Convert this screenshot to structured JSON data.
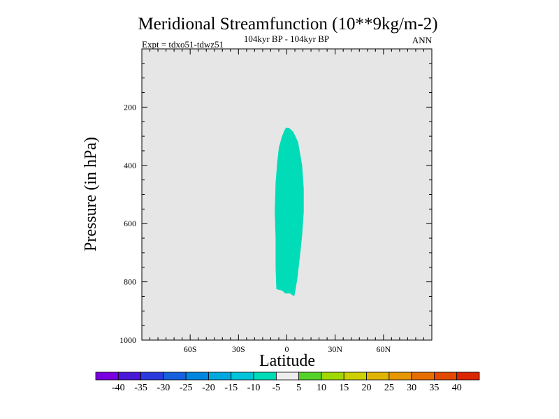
{
  "chart_data": {
    "type": "heatmap",
    "title": "Meridional Streamfunction (10**9kg/m-2)",
    "subtitle_left": "Expt = tdxo51-tdwz51",
    "subtitle_center": "104kyr BP - 104kyr BP",
    "subtitle_right": "ANN",
    "xlabel": "Latitude",
    "ylabel": "Pressure (in hPa)",
    "xlim": [
      -90,
      90
    ],
    "ylim": [
      1000,
      0
    ],
    "x_ticks": [
      {
        "value": -60,
        "label": "60S"
      },
      {
        "value": -30,
        "label": "30S"
      },
      {
        "value": 0,
        "label": "0"
      },
      {
        "value": 30,
        "label": "30N"
      },
      {
        "value": 60,
        "label": "60N"
      }
    ],
    "y_ticks": [
      {
        "value": 200,
        "label": "200"
      },
      {
        "value": 400,
        "label": "400"
      },
      {
        "value": 600,
        "label": "600"
      },
      {
        "value": 800,
        "label": "800"
      },
      {
        "value": 1000,
        "label": "1000"
      }
    ],
    "background_color": "#e6e6e6",
    "contour_regions": [
      {
        "name": "negative-cell",
        "range": "-10 to -5",
        "color": "#00dcb8",
        "outline": [
          [
            -0.5,
            270
          ],
          [
            1.5,
            272
          ],
          [
            4,
            285
          ],
          [
            7,
            320
          ],
          [
            9.5,
            400
          ],
          [
            10.5,
            480
          ],
          [
            10.5,
            560
          ],
          [
            9.5,
            640
          ],
          [
            8,
            720
          ],
          [
            6.5,
            790
          ],
          [
            5,
            840
          ],
          [
            4.5,
            850
          ],
          [
            2,
            840
          ],
          [
            -1,
            840
          ],
          [
            -3,
            830
          ],
          [
            -6.5,
            825
          ],
          [
            -7,
            750
          ],
          [
            -7,
            650
          ],
          [
            -7.5,
            560
          ],
          [
            -7,
            460
          ],
          [
            -6,
            390
          ],
          [
            -5,
            340
          ],
          [
            -3,
            300
          ],
          [
            -1.5,
            280
          ]
        ]
      }
    ],
    "colorbar": {
      "colors": [
        "#7a00e0",
        "#4a16d8",
        "#2a3adc",
        "#1660e0",
        "#0086e0",
        "#00a8e0",
        "#00c4d8",
        "#00dcb8",
        "#ededed",
        "#55d22a",
        "#a0d800",
        "#cdd000",
        "#e0b400",
        "#e69600",
        "#e66e00",
        "#e24a00",
        "#dc2600"
      ],
      "labels": [
        "-40",
        "-35",
        "-30",
        "-25",
        "-20",
        "-15",
        "-10",
        "-5",
        "5",
        "10",
        "15",
        "20",
        "25",
        "30",
        "35",
        "40"
      ]
    }
  }
}
